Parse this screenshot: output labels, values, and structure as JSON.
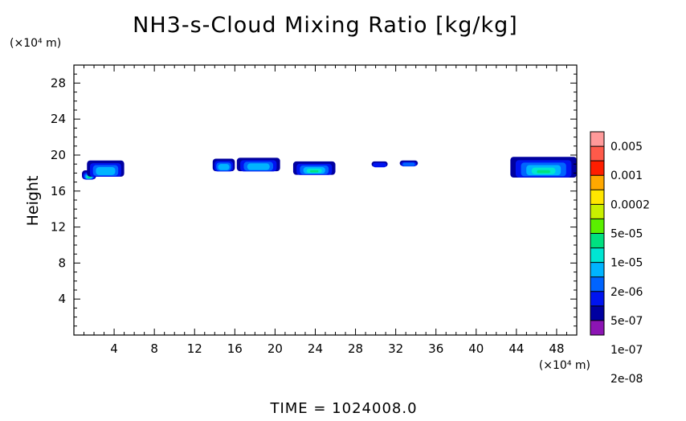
{
  "chart_data": {
    "type": "heatmap",
    "title": "NH3-s-Cloud Mixing Ratio [kg/kg]",
    "ylabel": "Height",
    "xlabel": "",
    "x_unit": "(×10⁴ m)",
    "y_unit": "(×10⁴ m)",
    "x_ticks": [
      "4",
      "8",
      "12",
      "16",
      "20",
      "24",
      "28",
      "32",
      "36",
      "40",
      "44",
      "48"
    ],
    "y_ticks": [
      "4",
      "8",
      "12",
      "16",
      "20",
      "24",
      "28"
    ],
    "xlim": [
      0,
      50
    ],
    "ylim": [
      0,
      30
    ],
    "colorbar": {
      "labels": [
        "0.005",
        "0.001",
        "0.0002",
        "5e-05",
        "1e-05",
        "2e-06",
        "5e-07",
        "1e-07",
        "2e-08"
      ],
      "colors": [
        "#ff9a9a",
        "#ff5a4a",
        "#ff1e00",
        "#ffa800",
        "#ffe600",
        "#c8f000",
        "#5af000",
        "#00e080",
        "#00e6d2",
        "#00b4ff",
        "#0064ff",
        "#0014f0",
        "#0000a0",
        "#8c14b4"
      ]
    },
    "regions": [
      {
        "x": [
          0.8,
          2.2
        ],
        "y": [
          17.3,
          18.3
        ],
        "level": 5
      },
      {
        "x": [
          1.3,
          5.0
        ],
        "y": [
          17.6,
          19.4
        ],
        "level": 3
      },
      {
        "x": [
          13.8,
          16.0
        ],
        "y": [
          18.2,
          19.6
        ],
        "level": 3
      },
      {
        "x": [
          16.2,
          20.5
        ],
        "y": [
          18.2,
          19.7
        ],
        "level": 3
      },
      {
        "x": [
          21.8,
          26.0
        ],
        "y": [
          17.8,
          19.3
        ],
        "level": 5
      },
      {
        "x": [
          29.6,
          31.2
        ],
        "y": [
          18.7,
          19.3
        ],
        "level": 1
      },
      {
        "x": [
          32.4,
          34.2
        ],
        "y": [
          18.8,
          19.4
        ],
        "level": 2
      },
      {
        "x": [
          43.4,
          50.0
        ],
        "y": [
          17.5,
          19.8
        ],
        "level": 5
      }
    ],
    "footer": "TIME  =  1024008.0"
  }
}
